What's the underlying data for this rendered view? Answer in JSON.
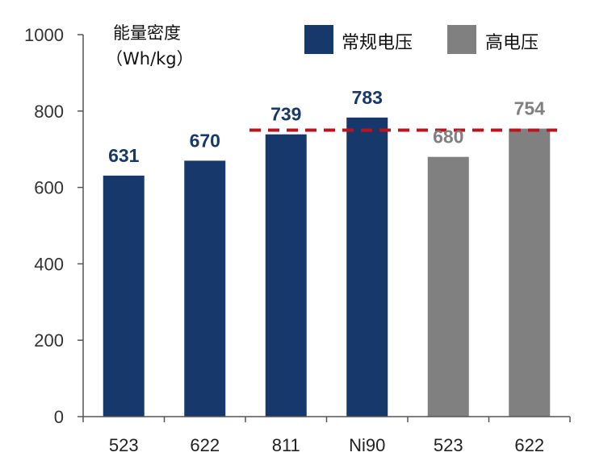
{
  "chart_data": {
    "type": "bar",
    "categories": [
      "523",
      "622",
      "811",
      "Ni90",
      "523",
      "622"
    ],
    "values": [
      631,
      670,
      739,
      783,
      680,
      754
    ],
    "series_of_bar": [
      "常规电压",
      "常规电压",
      "常规电压",
      "常规电压",
      "高电压",
      "高电压"
    ],
    "legend": [
      {
        "name": "常规电压",
        "color": "#17386b"
      },
      {
        "name": "高电压",
        "color": "#808080"
      }
    ],
    "ylabel_line1": "能量密度",
    "ylabel_line2": "（Wh/kg）",
    "ylim": [
      0,
      1000
    ],
    "yticks": [
      0,
      200,
      400,
      600,
      800,
      1000
    ],
    "yticks_labels": [
      "0",
      "200",
      "400",
      "600",
      "800",
      "1000"
    ],
    "reference_line": {
      "value": 750,
      "color": "#c0121c",
      "style": "dashed"
    },
    "grid": false,
    "legend_position": "top-right"
  }
}
